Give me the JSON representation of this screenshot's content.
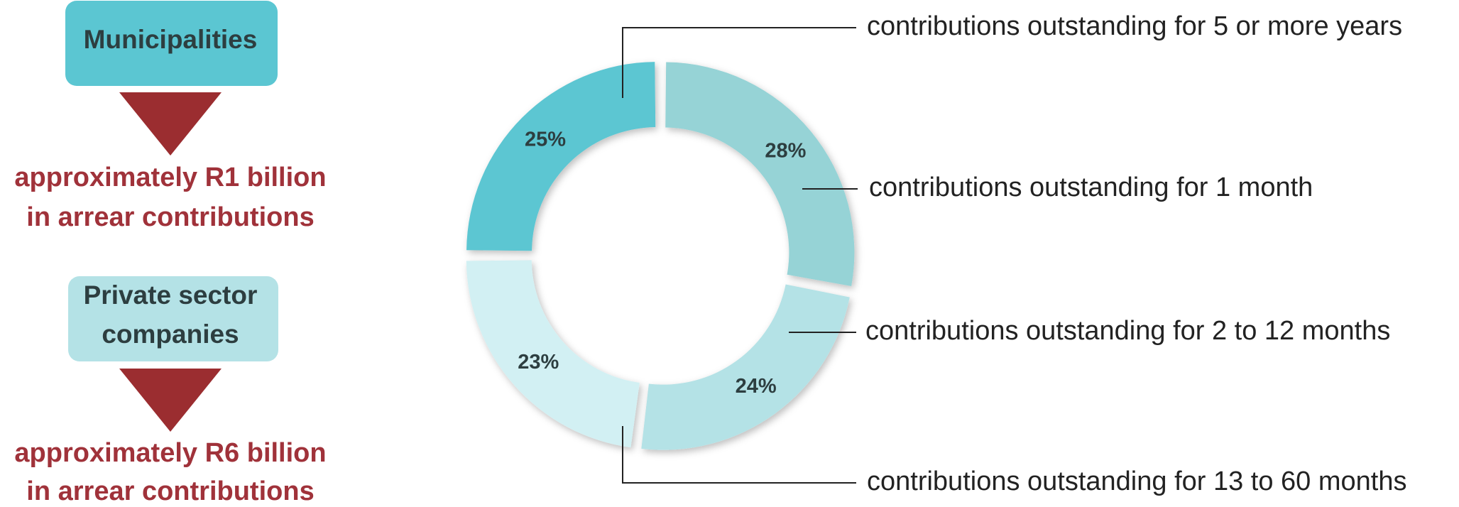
{
  "left_panel": {
    "groups": [
      {
        "title": [
          "Municipalities"
        ],
        "color": "#5bc6d2",
        "result": [
          "approximately R1 billion",
          "in arrear contributions"
        ]
      },
      {
        "title": [
          "Private sector",
          "companies"
        ],
        "color": "#b4e2e6",
        "result": [
          "approximately R6 billion",
          "in arrear contributions"
        ]
      }
    ]
  },
  "chart_data": {
    "type": "donut",
    "categories": [
      "contributions outstanding for 1 month",
      "contributions outstanding for 2 to 12 months",
      "contributions outstanding for 13 to 60 months",
      "contributions outstanding for 5 or more years"
    ],
    "values": [
      28,
      24,
      23,
      25
    ],
    "value_labels": [
      "28%",
      "24%",
      "23%",
      "25%"
    ],
    "colors": [
      "#96d3d6",
      "#b4e2e6",
      "#d2f0f3",
      "#5bc6d2"
    ]
  }
}
